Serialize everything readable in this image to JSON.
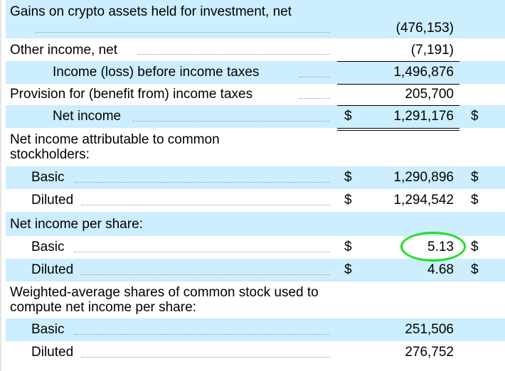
{
  "statement": {
    "rows": [
      {
        "label": "Gains on crypto assets held for investment, net",
        "value": "(476,153)"
      },
      {
        "label": "Other income, net",
        "value": "(7,191)"
      },
      {
        "label": "Income (loss) before income taxes",
        "value": "1,496,876"
      },
      {
        "label": "Provision for (benefit from) income taxes",
        "value": "205,700"
      },
      {
        "label": "Net income",
        "dollar": "$",
        "value": "1,291,176",
        "dollar2": "$"
      },
      {
        "label": "Net income attributable to common stockholders:"
      },
      {
        "label": "Basic",
        "dollar": "$",
        "value": "1,290,896",
        "dollar2": "$"
      },
      {
        "label": "Diluted",
        "dollar": "$",
        "value": "1,294,542",
        "dollar2": "$"
      },
      {
        "label": "Net income per share:"
      },
      {
        "label": "Basic",
        "dollar": "$",
        "value": "5.13",
        "dollar2": "$"
      },
      {
        "label": "Diluted",
        "dollar": "$",
        "value": "4.68",
        "dollar2": "$"
      },
      {
        "label": "Weighted-average shares of common stock used to compute net income per share:"
      },
      {
        "label": "Basic",
        "value": "251,506"
      },
      {
        "label": "Diluted",
        "value": "276,752"
      }
    ]
  },
  "highlight": {
    "color": "#22dd22",
    "row": 9
  }
}
